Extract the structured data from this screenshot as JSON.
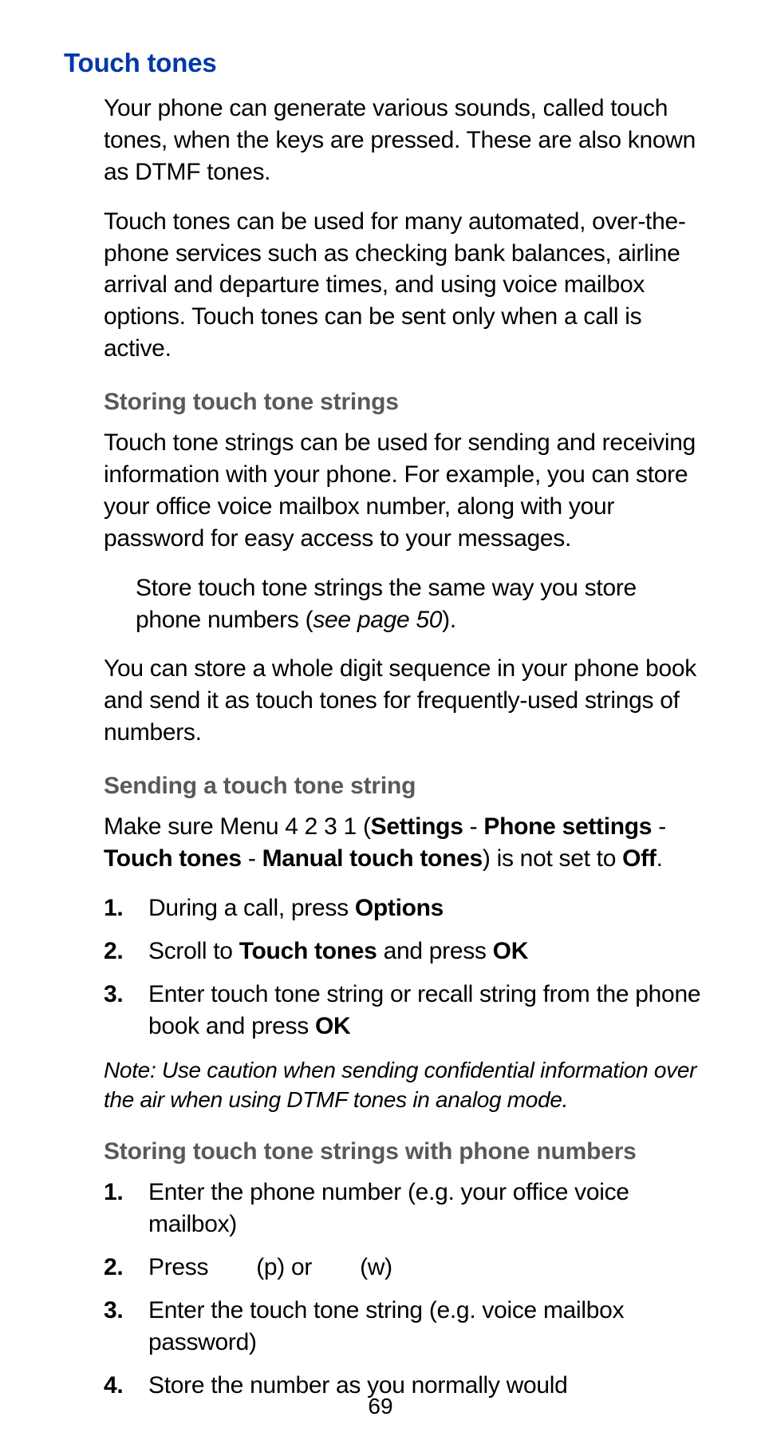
{
  "page": {
    "number": "69",
    "title": "Touch tones",
    "intro_para1": "Your phone can generate various sounds, called touch tones, when the keys are pressed. These are also known as DTMF tones.",
    "intro_para2": "Touch tones can be used for many automated, over-the-phone services such as checking bank balances, airline arrival and departure times, and using voice mailbox options. Touch tones can be sent only when a call is active.",
    "sections": {
      "storing": {
        "heading": "Storing touch tone strings",
        "p1": "Touch tone strings can be used for sending and receiving information with your phone. For example, you can store your office voice mailbox number, along with your password for easy access to your messages.",
        "tip_pre": "Store touch tone strings the same way you store phone numbers (",
        "tip_xref": "see page 50",
        "tip_post": ").",
        "p2": "You can store a whole digit sequence in your phone book and send it as touch tones for frequently-used strings of numbers."
      },
      "sending": {
        "heading": "Sending a touch tone string",
        "intro_pre": "Make sure Menu 4 2 3 1 (",
        "menu_path": [
          "Settings",
          "Phone settings",
          "Touch tones",
          "Manual touch tones"
        ],
        "intro_mid": ") is not set to ",
        "off_label": "Off",
        "intro_post": ".",
        "steps": [
          {
            "pre": "During a call, press ",
            "bold": "Options",
            "post": ""
          },
          {
            "pre": "Scroll to ",
            "bold": "Touch tones",
            "mid": " and press ",
            "bold2": "OK",
            "post": ""
          },
          {
            "pre": "Enter touch tone string or recall string from the phone book and press ",
            "bold": "OK",
            "post": ""
          }
        ],
        "note": "Note: Use caution when sending confidential information over the air when using DTMF tones in analog mode."
      },
      "storing_with": {
        "heading": "Storing touch tone strings with phone numbers",
        "steps": [
          {
            "text": "Enter the phone number (e.g. your office voice mailbox)"
          },
          {
            "pre": "Press",
            "gap1": " ",
            "p_label": "(p)",
            "or": " or",
            "gap2": " ",
            "w_label": "(w)"
          },
          {
            "text": "Enter the touch tone string (e.g. voice mailbox password)"
          },
          {
            "text": "Store the number as you normally would"
          }
        ]
      }
    }
  },
  "colors": {
    "title": "#0039a6",
    "subheading": "#595959",
    "body": "#000000",
    "background": "#ffffff"
  },
  "typography": {
    "title_fontsize": 33,
    "subheading_fontsize": 30,
    "body_fontsize": 30,
    "note_fontsize": 28,
    "pagenum_fontsize": 28,
    "title_weight": 700,
    "body_weight": 300,
    "bold_weight": 700
  }
}
